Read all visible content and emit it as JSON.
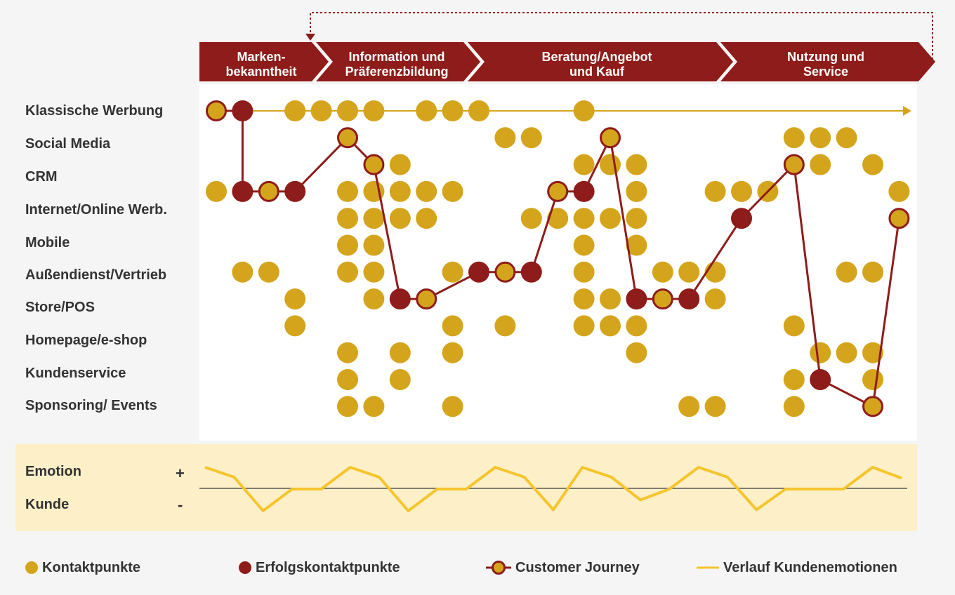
{
  "phases": [
    {
      "label_line1": "Marken-",
      "label_line2": "bekanntheit"
    },
    {
      "label_line1": "Information und",
      "label_line2": "Präferenzbildung"
    },
    {
      "label_line1": "Beratung/Angebot",
      "label_line2": "und Kauf"
    },
    {
      "label_line1": "Nutzung und",
      "label_line2": "Service"
    }
  ],
  "channels": [
    "Klassische Werbung",
    "Social Media",
    "CRM",
    "Internet/Online Werb.",
    "Mobile",
    "Außendienst/Vertrieb",
    "Store/POS",
    "Homepage/e-shop",
    "Kundenservice",
    "Sponsoring/ Events"
  ],
  "contact_points": {
    "0": [
      0,
      3,
      4,
      5,
      6,
      8,
      9,
      10,
      14
    ],
    "1": [
      11,
      12,
      22,
      23,
      24
    ],
    "2": [
      6,
      7,
      14,
      15,
      16,
      22,
      23,
      25
    ],
    "3": [
      0,
      5,
      6,
      7,
      8,
      9,
      13,
      16,
      19,
      20,
      21,
      26
    ],
    "4": [
      5,
      6,
      7,
      8,
      12,
      13,
      14,
      15,
      16,
      20,
      26
    ],
    "5": [
      5,
      6,
      14,
      16
    ],
    "6": [
      1,
      2,
      5,
      6,
      9,
      10,
      11,
      12,
      14,
      17,
      18,
      19,
      24,
      25
    ],
    "7": [
      3,
      6,
      7,
      8,
      14,
      15,
      16,
      17,
      18,
      19
    ],
    "8": [
      3,
      9,
      11,
      14,
      15,
      16,
      22
    ],
    "9": [
      5,
      7,
      9,
      16,
      23,
      24,
      25
    ],
    "10": [
      5,
      7,
      22,
      25
    ],
    "11": [
      5,
      6,
      9,
      18,
      19,
      22
    ]
  },
  "journey": [
    {
      "col": 0,
      "row": 0,
      "kind": "journey"
    },
    {
      "col": 1,
      "row": 0,
      "kind": "success"
    },
    {
      "col": 1,
      "row": 3,
      "kind": "success"
    },
    {
      "col": 2,
      "row": 3,
      "kind": "journey"
    },
    {
      "col": 3,
      "row": 3,
      "kind": "success"
    },
    {
      "col": 5,
      "row": 1,
      "kind": "journey"
    },
    {
      "col": 6,
      "row": 2,
      "kind": "journey"
    },
    {
      "col": 7,
      "row": 7,
      "kind": "success"
    },
    {
      "col": 8,
      "row": 7,
      "kind": "journey"
    },
    {
      "col": 10,
      "row": 6,
      "kind": "success"
    },
    {
      "col": 11,
      "row": 6,
      "kind": "journey"
    },
    {
      "col": 12,
      "row": 6,
      "kind": "success"
    },
    {
      "col": 13,
      "row": 3,
      "kind": "journey"
    },
    {
      "col": 14,
      "row": 3,
      "kind": "success"
    },
    {
      "col": 15,
      "row": 1,
      "kind": "journey"
    },
    {
      "col": 16,
      "row": 7,
      "kind": "success"
    },
    {
      "col": 17,
      "row": 7,
      "kind": "journey"
    },
    {
      "col": 18,
      "row": 7,
      "kind": "success"
    },
    {
      "col": 20,
      "row": 4,
      "kind": "success"
    },
    {
      "col": 22,
      "row": 2,
      "kind": "journey"
    },
    {
      "col": 23,
      "row": 10,
      "kind": "success"
    },
    {
      "col": 25,
      "row": 11,
      "kind": "journey"
    },
    {
      "col": 26,
      "row": 4,
      "kind": "journey"
    }
  ],
  "emotion": {
    "label_top": "Emotion",
    "label_bottom": "Kunde",
    "plus": "+",
    "minus": "-",
    "values": [
      1.0,
      0.55,
      -1.0,
      0.0,
      0.0,
      1.0,
      0.55,
      -1.0,
      0.0,
      0.0,
      1.0,
      0.55,
      -0.95,
      1.0,
      0.55,
      -0.5,
      0.0,
      1.0,
      0.55,
      -0.95,
      0.0,
      0.0,
      0.0,
      1.0,
      0.5
    ]
  },
  "legend": {
    "contact": "Kontaktpunkte",
    "success": "Erfolgskontaktpunkte",
    "journey": "Customer Journey",
    "emotion": "Verlauf Kundenemotionen"
  },
  "colors": {
    "gold": "#d4a51c",
    "darkred": "#8e1c1a",
    "emotion_line": "#f5c52e",
    "emotion_bg": "#fdf0c8",
    "phase_bg": "#8e1c1a"
  }
}
